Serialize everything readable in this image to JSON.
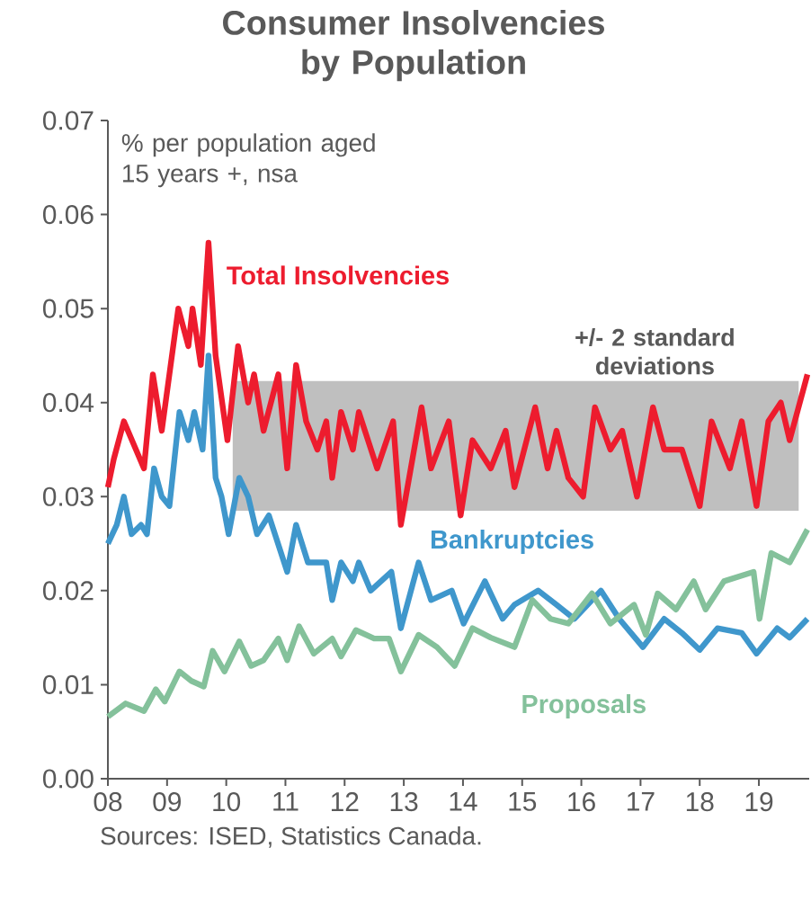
{
  "chart_data": {
    "type": "line",
    "title": "Consumer Insolvencies by Population",
    "annotations": [
      "% per population aged 15 years +, nsa",
      "Sources: ISED, Statistics Canada."
    ],
    "xlim": [
      2008,
      2019.85
    ],
    "xticks": [
      {
        "value": 2008,
        "label": "08"
      },
      {
        "value": 2009,
        "label": "09"
      },
      {
        "value": 2010,
        "label": "10"
      },
      {
        "value": 2011,
        "label": "11"
      },
      {
        "value": 2012,
        "label": "12"
      },
      {
        "value": 2013,
        "label": "13"
      },
      {
        "value": 2014,
        "label": "14"
      },
      {
        "value": 2015,
        "label": "15"
      },
      {
        "value": 2016,
        "label": "16"
      },
      {
        "value": 2017,
        "label": "17"
      },
      {
        "value": 2018,
        "label": "18"
      },
      {
        "value": 2019,
        "label": "19"
      }
    ],
    "ylim": [
      0,
      0.07
    ],
    "yticks": [
      {
        "value": 0,
        "label": "0.00"
      },
      {
        "value": 0.01,
        "label": "0.01"
      },
      {
        "value": 0.02,
        "label": "0.02"
      },
      {
        "value": 0.03,
        "label": "0.03"
      },
      {
        "value": 0.04,
        "label": "0.04"
      },
      {
        "value": 0.05,
        "label": "0.05"
      },
      {
        "value": 0.06,
        "label": "0.06"
      },
      {
        "value": 0.07,
        "label": "0.07"
      }
    ],
    "bands": [
      {
        "axis": "y",
        "from": 0.0285,
        "to": 0.0423,
        "label": "+/- 2 standard deviations",
        "color": "#bfbfbf"
      }
    ],
    "series": [
      {
        "name": "Total Insolvencies",
        "color": "#ed1c2e",
        "x": [
          2008.0,
          2008.1,
          2008.27,
          2008.61,
          2008.76,
          2008.91,
          2009.19,
          2009.36,
          2009.43,
          2009.57,
          2009.7,
          2009.82,
          2010.02,
          2010.2,
          2010.37,
          2010.47,
          2010.63,
          2010.88,
          2011.03,
          2011.18,
          2011.35,
          2011.54,
          2011.69,
          2011.79,
          2011.94,
          2012.14,
          2012.24,
          2012.55,
          2012.82,
          2012.95,
          2013.3,
          2013.46,
          2013.76,
          2013.96,
          2014.16,
          2014.47,
          2014.72,
          2014.87,
          2015.22,
          2015.43,
          2015.58,
          2015.78,
          2016.03,
          2016.23,
          2016.49,
          2016.69,
          2016.94,
          2017.21,
          2017.4,
          2017.7,
          2018.0,
          2018.2,
          2018.51,
          2018.71,
          2018.96,
          2019.16,
          2019.37,
          2019.52,
          2019.82
        ],
        "values": [
          0.031,
          0.034,
          0.038,
          0.033,
          0.043,
          0.037,
          0.05,
          0.046,
          0.05,
          0.044,
          0.057,
          0.045,
          0.036,
          0.046,
          0.04,
          0.043,
          0.037,
          0.043,
          0.033,
          0.044,
          0.038,
          0.035,
          0.038,
          0.032,
          0.039,
          0.035,
          0.039,
          0.033,
          0.038,
          0.027,
          0.0395,
          0.033,
          0.038,
          0.028,
          0.036,
          0.033,
          0.037,
          0.031,
          0.0395,
          0.033,
          0.037,
          0.032,
          0.03,
          0.0395,
          0.035,
          0.037,
          0.03,
          0.0395,
          0.035,
          0.035,
          0.029,
          0.038,
          0.033,
          0.038,
          0.029,
          0.038,
          0.04,
          0.036,
          0.043
        ]
      },
      {
        "name": "Bankruptcies",
        "color": "#3f97cc",
        "x": [
          2008.0,
          2008.15,
          2008.27,
          2008.4,
          2008.56,
          2008.66,
          2008.78,
          2008.91,
          2009.04,
          2009.21,
          2009.36,
          2009.46,
          2009.6,
          2009.7,
          2009.82,
          2009.92,
          2010.04,
          2010.22,
          2010.37,
          2010.52,
          2010.72,
          2011.03,
          2011.18,
          2011.38,
          2011.69,
          2011.79,
          2011.94,
          2012.14,
          2012.24,
          2012.44,
          2012.79,
          2012.95,
          2013.25,
          2013.46,
          2013.81,
          2014.01,
          2014.37,
          2014.67,
          2014.87,
          2015.27,
          2015.58,
          2015.88,
          2016.33,
          2016.64,
          2017.04,
          2017.4,
          2017.7,
          2018.0,
          2018.3,
          2018.71,
          2018.96,
          2019.31,
          2019.52,
          2019.82
        ],
        "values": [
          0.025,
          0.027,
          0.03,
          0.026,
          0.027,
          0.026,
          0.033,
          0.03,
          0.029,
          0.039,
          0.036,
          0.039,
          0.035,
          0.045,
          0.032,
          0.03,
          0.026,
          0.032,
          0.03,
          0.026,
          0.028,
          0.022,
          0.027,
          0.023,
          0.023,
          0.019,
          0.023,
          0.021,
          0.023,
          0.02,
          0.022,
          0.016,
          0.023,
          0.019,
          0.02,
          0.0165,
          0.021,
          0.017,
          0.0185,
          0.02,
          0.0185,
          0.017,
          0.02,
          0.017,
          0.014,
          0.017,
          0.0155,
          0.0137,
          0.016,
          0.0155,
          0.0133,
          0.016,
          0.015,
          0.017
        ]
      },
      {
        "name": "Proposals",
        "color": "#84c19b",
        "x": [
          2008.0,
          2008.3,
          2008.61,
          2008.81,
          2008.96,
          2009.21,
          2009.41,
          2009.62,
          2009.77,
          2009.97,
          2010.22,
          2010.42,
          2010.63,
          2010.88,
          2011.03,
          2011.23,
          2011.48,
          2011.79,
          2011.94,
          2012.19,
          2012.5,
          2012.75,
          2012.95,
          2013.25,
          2013.56,
          2013.86,
          2014.16,
          2014.47,
          2014.87,
          2015.17,
          2015.48,
          2015.78,
          2016.18,
          2016.49,
          2016.89,
          2017.09,
          2017.29,
          2017.6,
          2017.9,
          2018.1,
          2018.41,
          2018.91,
          2019.01,
          2019.21,
          2019.52,
          2019.82
        ],
        "values": [
          0.0066,
          0.008,
          0.0072,
          0.0095,
          0.0082,
          0.0114,
          0.0104,
          0.0098,
          0.0136,
          0.0114,
          0.0146,
          0.012,
          0.0126,
          0.0149,
          0.0126,
          0.0162,
          0.0133,
          0.0149,
          0.013,
          0.0158,
          0.0149,
          0.0149,
          0.0114,
          0.0153,
          0.014,
          0.012,
          0.016,
          0.015,
          0.014,
          0.019,
          0.017,
          0.0165,
          0.0197,
          0.0165,
          0.0185,
          0.0153,
          0.0197,
          0.018,
          0.021,
          0.018,
          0.021,
          0.022,
          0.017,
          0.024,
          0.023,
          0.0265
        ]
      }
    ]
  }
}
